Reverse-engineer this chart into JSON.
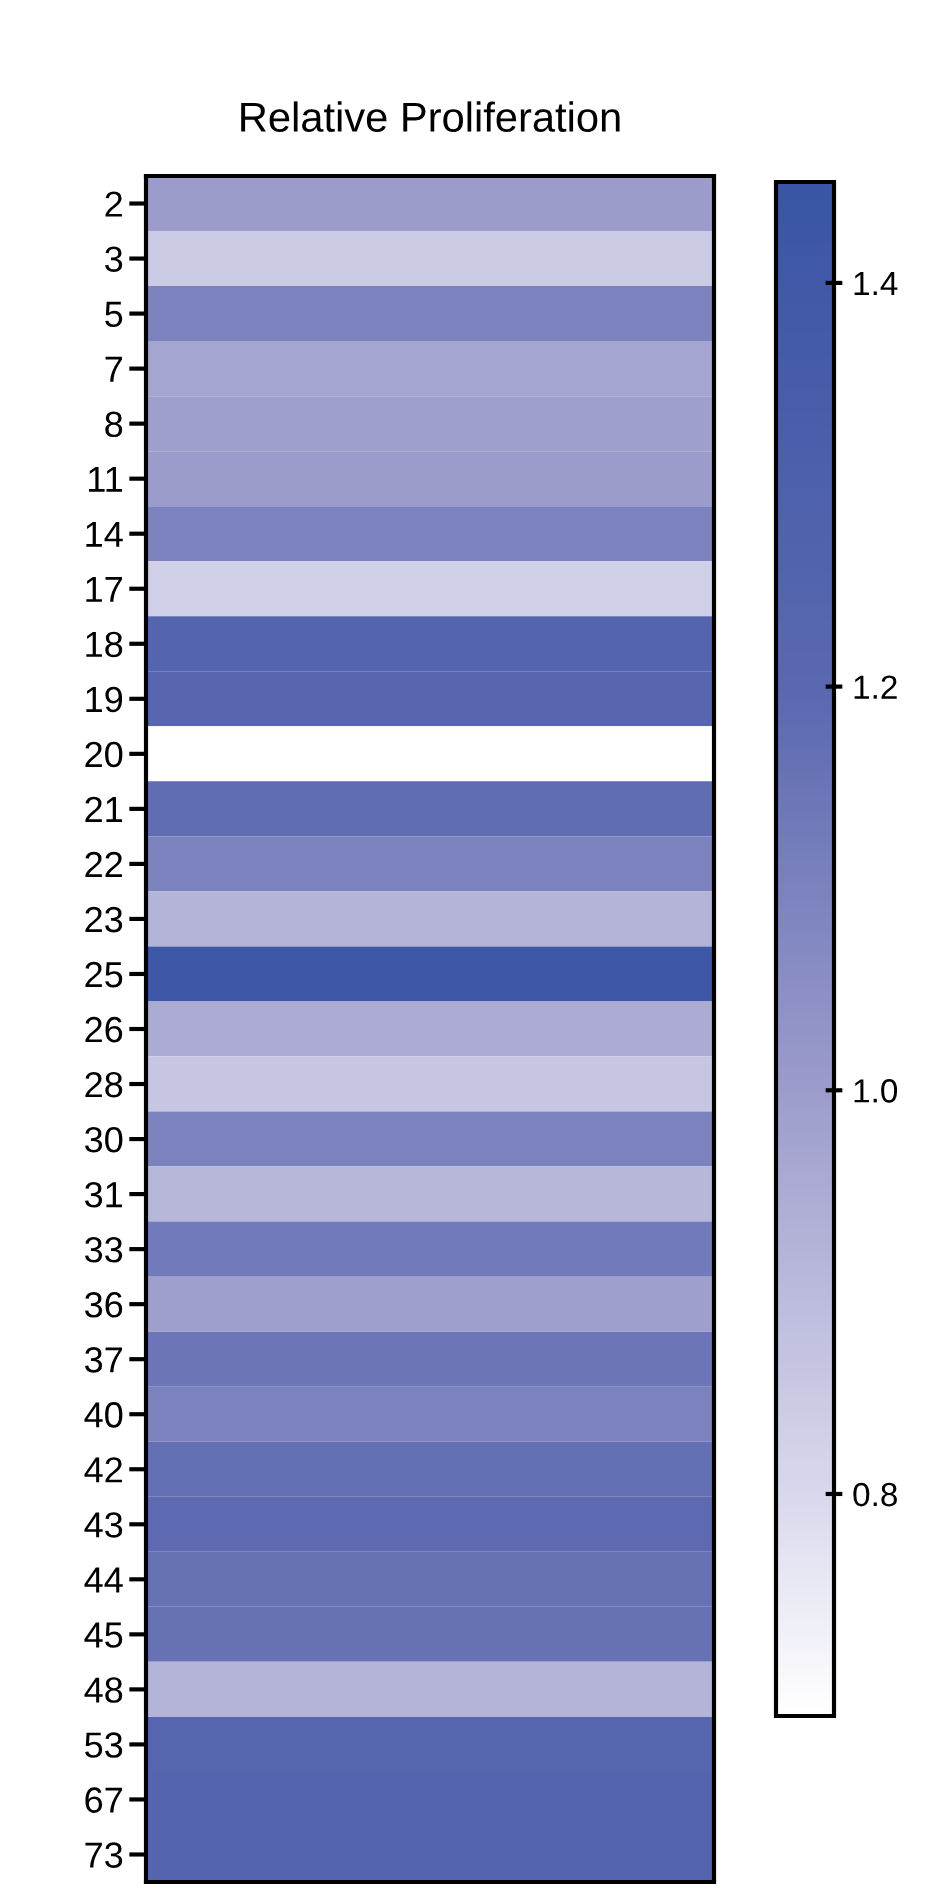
{
  "chart_data": {
    "type": "heatmap",
    "title": "Relative Proliferation",
    "categories": [
      null
    ],
    "y_categories": [
      "2",
      "3",
      "5",
      "7",
      "8",
      "11",
      "14",
      "17",
      "18",
      "19",
      "20",
      "21",
      "22",
      "23",
      "25",
      "26",
      "28",
      "30",
      "31",
      "33",
      "36",
      "37",
      "40",
      "42",
      "43",
      "44",
      "45",
      "48",
      "53",
      "67",
      "73"
    ],
    "cells": [
      [
        1.0
      ],
      [
        0.85
      ],
      [
        1.1
      ],
      [
        0.97
      ],
      [
        0.99
      ],
      [
        1.0
      ],
      [
        1.1
      ],
      [
        0.83
      ],
      [
        1.25
      ],
      [
        1.22
      ],
      [
        0.69
      ],
      [
        1.18
      ],
      [
        1.1
      ],
      [
        0.92
      ],
      [
        1.42
      ],
      [
        0.95
      ],
      [
        0.86
      ],
      [
        1.1
      ],
      [
        0.91
      ],
      [
        1.13
      ],
      [
        0.99
      ],
      [
        1.15
      ],
      [
        1.1
      ],
      [
        1.17
      ],
      [
        1.19
      ],
      [
        1.16
      ],
      [
        1.16
      ],
      [
        0.92
      ],
      [
        1.24
      ],
      [
        1.25
      ],
      [
        1.25
      ]
    ],
    "clim": [
      0.69,
      1.45
    ],
    "cticks": [
      0.8,
      {
        "value": 1.0,
        "label": "1.0"
      },
      1.2,
      1.4
    ]
  }
}
